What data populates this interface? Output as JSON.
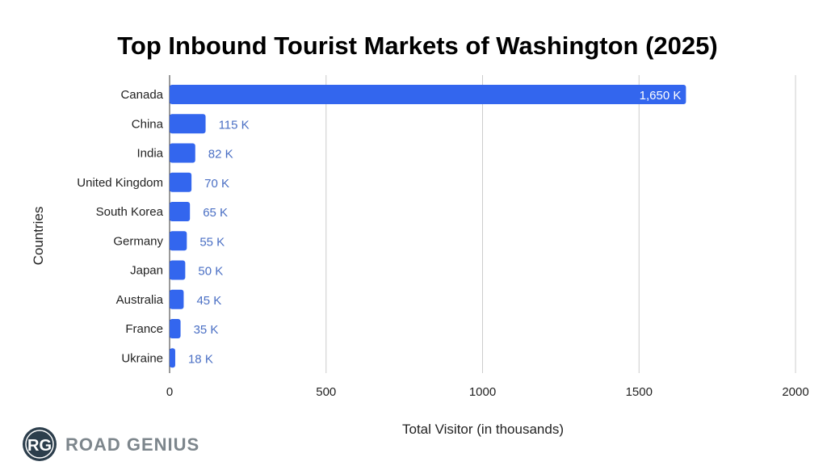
{
  "chart_data": {
    "type": "bar",
    "orientation": "horizontal",
    "title": "Top Inbound Tourist Markets of Washington (2025)",
    "xlabel": "Total Visitor (in thousands)",
    "ylabel": "Countries",
    "categories": [
      "Canada",
      "China",
      "India",
      "United Kingdom",
      "South Korea",
      "Germany",
      "Japan",
      "Australia",
      "France",
      "Ukraine"
    ],
    "values": [
      1650,
      115,
      82,
      70,
      65,
      55,
      50,
      45,
      35,
      18
    ],
    "data_labels": [
      "1,650 K",
      "115 K",
      "82 K",
      "70 K",
      "65 K",
      "55 K",
      "50 K",
      "45 K",
      "35 K",
      "18 K"
    ],
    "xlim": [
      0,
      2000
    ],
    "xticks": [
      0,
      500,
      1000,
      1500,
      2000
    ],
    "xtick_labels": [
      "0",
      "500",
      "1000",
      "1500",
      "2000"
    ],
    "grid": true,
    "bar_color": "#3366ee",
    "label_color": "#4a6fc4"
  },
  "logo": {
    "text": "ROAD GENIUS",
    "initials": "RG"
  }
}
